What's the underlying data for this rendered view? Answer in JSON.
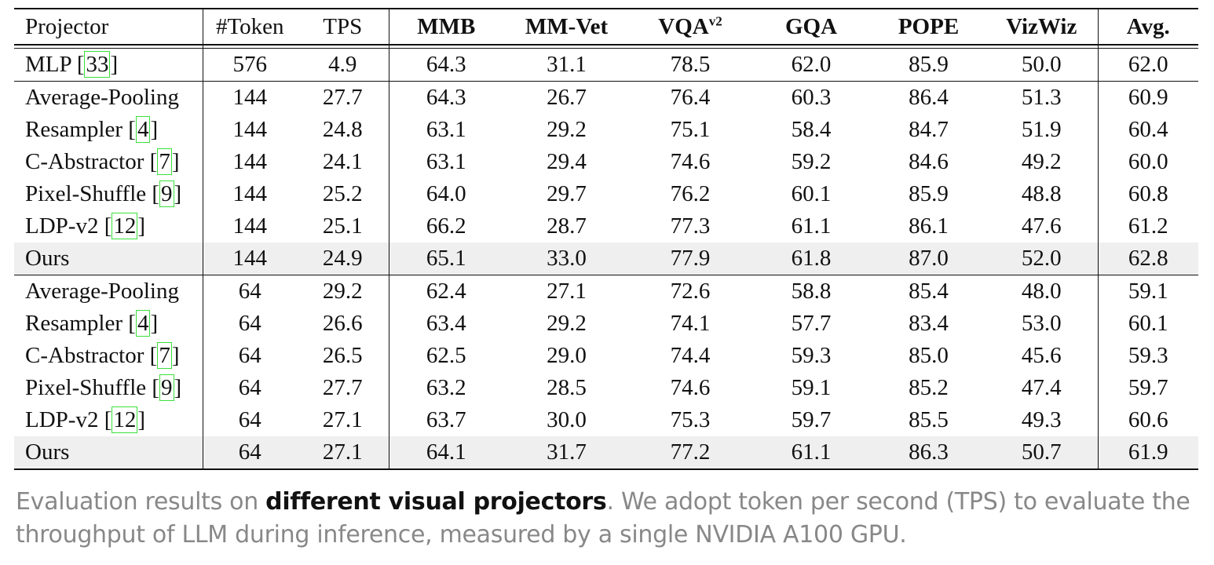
{
  "table": {
    "headers": [
      {
        "label": "Projector",
        "sup": ""
      },
      {
        "label": "#Token",
        "sup": ""
      },
      {
        "label": "TPS",
        "sup": ""
      },
      {
        "label": "MMB",
        "sup": ""
      },
      {
        "label": "MM-Vet",
        "sup": ""
      },
      {
        "label": "VQA",
        "sup": "v2"
      },
      {
        "label": "GQA",
        "sup": ""
      },
      {
        "label": "POPE",
        "sup": ""
      },
      {
        "label": "VizWiz",
        "sup": ""
      },
      {
        "label": "Avg.",
        "sup": ""
      }
    ],
    "groups": [
      [
        {
          "name": "MLP",
          "ref": "33",
          "cells": [
            "576",
            "4.9",
            "64.3",
            "31.1",
            "78.5",
            "62.0",
            "85.9",
            "50.0",
            "62.0"
          ],
          "bold": [],
          "highlight": false
        }
      ],
      [
        {
          "name": "Average-Pooling",
          "ref": "",
          "cells": [
            "144",
            "27.7",
            "64.3",
            "26.7",
            "76.4",
            "60.3",
            "86.4",
            "51.3",
            "60.9"
          ],
          "bold": [
            1
          ],
          "highlight": false
        },
        {
          "name": "Resampler",
          "ref": "4",
          "cells": [
            "144",
            "24.8",
            "63.1",
            "29.2",
            "75.1",
            "58.4",
            "84.7",
            "51.9",
            "60.4"
          ],
          "bold": [],
          "highlight": false
        },
        {
          "name": "C-Abstractor",
          "ref": "7",
          "cells": [
            "144",
            "24.1",
            "63.1",
            "29.4",
            "74.6",
            "59.2",
            "84.6",
            "49.2",
            "60.0"
          ],
          "bold": [],
          "highlight": false
        },
        {
          "name": "Pixel-Shuffle",
          "ref": "9",
          "cells": [
            "144",
            "25.2",
            "64.0",
            "29.7",
            "76.2",
            "60.1",
            "85.9",
            "48.8",
            "60.8"
          ],
          "bold": [],
          "highlight": false
        },
        {
          "name": "LDP-v2",
          "ref": "12",
          "cells": [
            "144",
            "25.1",
            "66.2",
            "28.7",
            "77.3",
            "61.1",
            "86.1",
            "47.6",
            "61.2"
          ],
          "bold": [
            2
          ],
          "highlight": false
        },
        {
          "name": "Ours",
          "ref": "",
          "cells": [
            "144",
            "24.9",
            "65.1",
            "33.0",
            "77.9",
            "61.8",
            "87.0",
            "52.0",
            "62.8"
          ],
          "bold": [
            3,
            4,
            5,
            6,
            7,
            8
          ],
          "highlight": true
        }
      ],
      [
        {
          "name": "Average-Pooling",
          "ref": "",
          "cells": [
            "64",
            "29.2",
            "62.4",
            "27.1",
            "72.6",
            "58.8",
            "85.4",
            "48.0",
            "59.1"
          ],
          "bold": [
            1
          ],
          "highlight": false
        },
        {
          "name": "Resampler",
          "ref": "4",
          "cells": [
            "64",
            "26.6",
            "63.4",
            "29.2",
            "74.1",
            "57.7",
            "83.4",
            "53.0",
            "60.1"
          ],
          "bold": [
            7
          ],
          "highlight": false
        },
        {
          "name": "C-Abstractor",
          "ref": "7",
          "cells": [
            "64",
            "26.5",
            "62.5",
            "29.0",
            "74.4",
            "59.3",
            "85.0",
            "45.6",
            "59.3"
          ],
          "bold": [],
          "highlight": false
        },
        {
          "name": "Pixel-Shuffle",
          "ref": "9",
          "cells": [
            "64",
            "27.7",
            "63.2",
            "28.5",
            "74.6",
            "59.1",
            "85.2",
            "47.4",
            "59.7"
          ],
          "bold": [],
          "highlight": false
        },
        {
          "name": "LDP-v2",
          "ref": "12",
          "cells": [
            "64",
            "27.1",
            "63.7",
            "30.0",
            "75.3",
            "59.7",
            "85.5",
            "49.3",
            "60.6"
          ],
          "bold": [],
          "highlight": false
        },
        {
          "name": "Ours",
          "ref": "",
          "cells": [
            "64",
            "27.1",
            "64.1",
            "31.7",
            "77.2",
            "61.1",
            "86.3",
            "50.7",
            "61.9"
          ],
          "bold": [
            2,
            3,
            4,
            5,
            6,
            8
          ],
          "highlight": true
        }
      ]
    ]
  },
  "caption": {
    "prefix": "Evaluation results on ",
    "emphasis": "different visual projectors",
    "suffix": ". We adopt token per second (TPS) to evaluate the throughput of LLM during inference, measured by a single NVIDIA A100 GPU."
  },
  "colors": {
    "highlight_row": "#efefef",
    "citation_box": "#3be03b",
    "caption_text": "#888888"
  }
}
